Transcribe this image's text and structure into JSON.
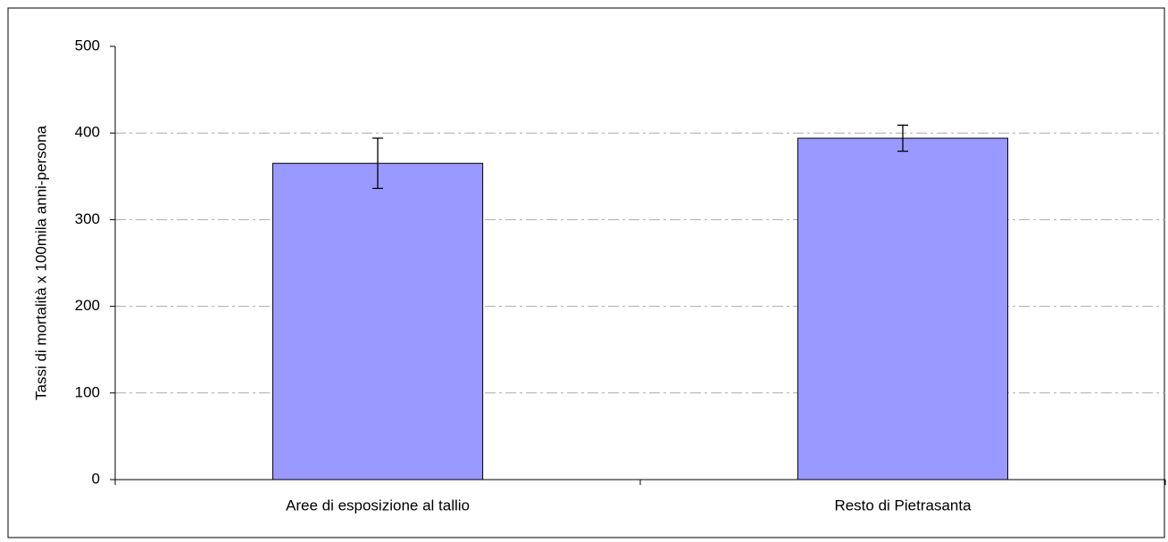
{
  "chart_data": {
    "type": "bar",
    "y_label": "Tassi di mortalità x 100mila anni-persona",
    "categories": [
      "Aree di esposizione al tallio",
      "Resto di Pietrasanta"
    ],
    "values": [
      365,
      394
    ],
    "errors": [
      29,
      15
    ],
    "color": "#9999ff",
    "ylim": [
      0,
      500
    ],
    "yticks": [
      0,
      100,
      200,
      300,
      400,
      500
    ],
    "grid": true
  }
}
